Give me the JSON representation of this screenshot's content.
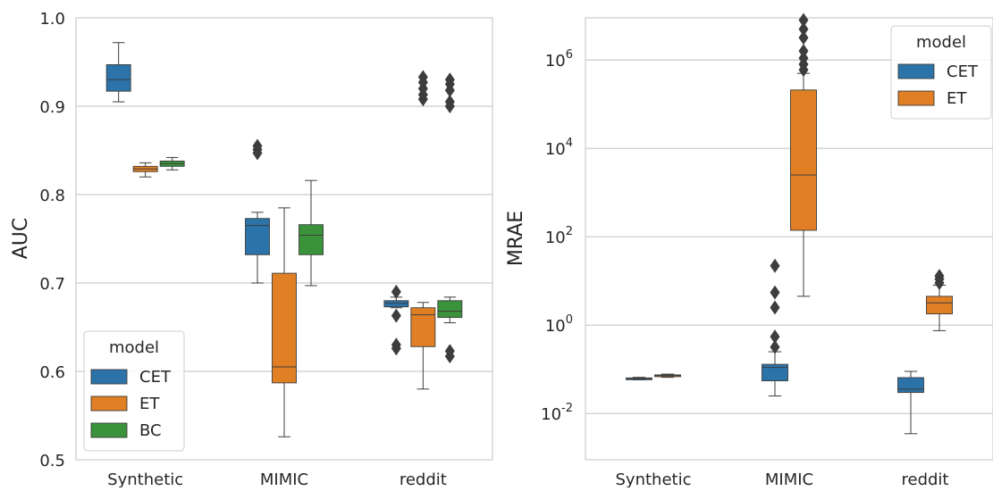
{
  "colors": {
    "CET": "#2b73a8",
    "ET": "#e07f24",
    "BC": "#3a923a",
    "grid": "#cccccc",
    "median": "#3d3d3d",
    "outlier": "#3d3d3d"
  },
  "chart_data": [
    {
      "type": "box",
      "title": "",
      "xlabel": "",
      "ylabel": "AUC",
      "ylim": [
        0.5,
        1.0
      ],
      "yticks": [
        "0.5",
        "0.6",
        "0.7",
        "0.8",
        "0.9",
        "1.0"
      ],
      "categories": [
        "Synthetic",
        "MIMIC",
        "reddit"
      ],
      "grid": true,
      "legend": {
        "title": "model",
        "position": "lower-left",
        "entries": [
          "CET",
          "ET",
          "BC"
        ]
      },
      "series": [
        {
          "name": "CET",
          "boxes": [
            {
              "whislo": 0.905,
              "q1": 0.917,
              "med": 0.93,
              "q3": 0.947,
              "whishi": 0.972,
              "fliers": []
            },
            {
              "whislo": 0.7,
              "q1": 0.732,
              "med": 0.765,
              "q3": 0.773,
              "whishi": 0.78,
              "fliers": [
                0.847,
                0.851,
                0.855
              ]
            },
            {
              "whislo": 0.672,
              "q1": 0.673,
              "med": 0.677,
              "q3": 0.68,
              "whishi": 0.684,
              "fliers": [
                0.69,
                0.663,
                0.63,
                0.626
              ]
            }
          ]
        },
        {
          "name": "ET",
          "boxes": [
            {
              "whislo": 0.82,
              "q1": 0.826,
              "med": 0.829,
              "q3": 0.832,
              "whishi": 0.836,
              "fliers": []
            },
            {
              "whislo": 0.526,
              "q1": 0.587,
              "med": 0.605,
              "q3": 0.711,
              "whishi": 0.785,
              "fliers": []
            },
            {
              "whislo": 0.58,
              "q1": 0.628,
              "med": 0.664,
              "q3": 0.672,
              "whishi": 0.678,
              "fliers": [
                0.908,
                0.913,
                0.92,
                0.927,
                0.933
              ]
            }
          ]
        },
        {
          "name": "BC",
          "boxes": [
            {
              "whislo": 0.828,
              "q1": 0.832,
              "med": 0.835,
              "q3": 0.838,
              "whishi": 0.842,
              "fliers": []
            },
            {
              "whislo": 0.697,
              "q1": 0.732,
              "med": 0.754,
              "q3": 0.766,
              "whishi": 0.816,
              "fliers": []
            },
            {
              "whislo": 0.655,
              "q1": 0.661,
              "med": 0.668,
              "q3": 0.68,
              "whishi": 0.684,
              "fliers": [
                0.617,
                0.623,
                0.9,
                0.905,
                0.918,
                0.925,
                0.93
              ]
            }
          ]
        }
      ]
    },
    {
      "type": "box",
      "title": "",
      "xlabel": "",
      "ylabel": "MRAE",
      "yscale": "log",
      "ylim": [
        0.0009,
        9000000
      ],
      "yticks": [
        0.01,
        1,
        100,
        10000,
        1000000
      ],
      "categories": [
        "Synthetic",
        "MIMIC",
        "reddit"
      ],
      "grid": true,
      "legend": {
        "title": "model",
        "position": "top-right",
        "entries": [
          "CET",
          "ET"
        ]
      },
      "series": [
        {
          "name": "CET",
          "boxes": [
            {
              "whislo": 0.058,
              "q1": 0.06,
              "med": 0.062,
              "q3": 0.064,
              "whishi": 0.066,
              "fliers": []
            },
            {
              "whislo": 0.025,
              "q1": 0.055,
              "med": 0.11,
              "q3": 0.13,
              "whishi": 0.25,
              "fliers": [
                0.32,
                0.55,
                2.5,
                5.5,
                22
              ]
            },
            {
              "whislo": 0.0035,
              "q1": 0.03,
              "med": 0.036,
              "q3": 0.065,
              "whishi": 0.09,
              "fliers": []
            }
          ]
        },
        {
          "name": "ET",
          "boxes": [
            {
              "whislo": 0.066,
              "q1": 0.069,
              "med": 0.072,
              "q3": 0.075,
              "whishi": 0.078,
              "fliers": []
            },
            {
              "whislo": 4.5,
              "q1": 140,
              "med": 2500,
              "q3": 210000,
              "whishi": 500000,
              "fliers": [
                600000,
                800000,
                1100000,
                1600000,
                3200000,
                5000000,
                8000000
              ]
            },
            {
              "whislo": 0.75,
              "q1": 1.8,
              "med": 3.2,
              "q3": 4.5,
              "whishi": 8.0,
              "fliers": [
                9.0,
                11,
                13
              ]
            }
          ]
        }
      ]
    }
  ]
}
